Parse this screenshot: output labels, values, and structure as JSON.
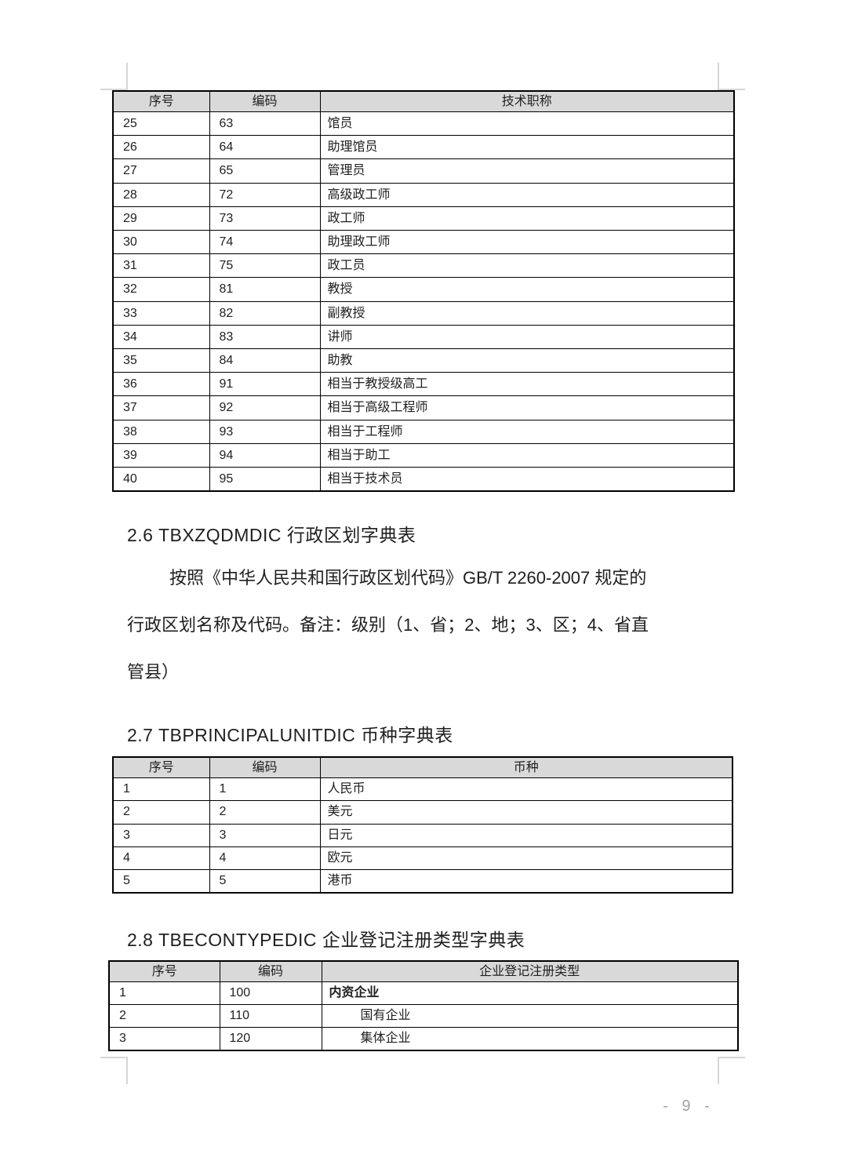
{
  "document": {
    "page_number_label": "- 9 -"
  },
  "colors": {
    "table_header_bg": "#d9d9d9",
    "table_border": "#000000",
    "body_text": "#1f1f1f",
    "page_number": "#a3a3a3",
    "crop_mark": "#d6d6d6"
  },
  "sections": {
    "tech_titles": {
      "table": {
        "headers": [
          "序号",
          "编码",
          "技术职称"
        ],
        "rows": [
          [
            "25",
            "63",
            "馆员"
          ],
          [
            "26",
            "64",
            "助理馆员"
          ],
          [
            "27",
            "65",
            "管理员"
          ],
          [
            "28",
            "72",
            "高级政工师"
          ],
          [
            "29",
            "73",
            "政工师"
          ],
          [
            "30",
            "74",
            "助理政工师"
          ],
          [
            "31",
            "75",
            "政工员"
          ],
          [
            "32",
            "81",
            "教授"
          ],
          [
            "33",
            "82",
            "副教授"
          ],
          [
            "34",
            "83",
            "讲师"
          ],
          [
            "35",
            "84",
            "助教"
          ],
          [
            "36",
            "91",
            "相当于教授级高工"
          ],
          [
            "37",
            "92",
            "相当于高级工程师"
          ],
          [
            "38",
            "93",
            "相当于工程师"
          ],
          [
            "39",
            "94",
            "相当于助工"
          ],
          [
            "40",
            "95",
            "相当于技术员"
          ]
        ]
      }
    },
    "admin_division": {
      "heading": "2.6 TBXZQDMDIC 行政区划字典表",
      "paragraph_lines": [
        "按照《中华人民共和国行政区划代码》GB/T 2260-2007 规定的",
        "行政区划名称及代码。备注：级别（1、省；2、地；3、区；4、省直",
        "管县）"
      ]
    },
    "currency": {
      "heading": "2.7 TBPRINCIPALUNITDIC 币种字典表",
      "table": {
        "headers": [
          "序号",
          "编码",
          "币种"
        ],
        "rows": [
          [
            "1",
            "1",
            "人民币"
          ],
          [
            "2",
            "2",
            "美元"
          ],
          [
            "3",
            "3",
            "日元"
          ],
          [
            "4",
            "4",
            "欧元"
          ],
          [
            "5",
            "5",
            "港币"
          ]
        ]
      }
    },
    "econ_type": {
      "heading": "2.8 TBECONTYPEDIC 企业登记注册类型字典表",
      "table": {
        "headers": [
          "序号",
          "编码",
          "企业登记注册类型"
        ],
        "rows": [
          [
            "1",
            "100",
            {
              "text": "内资企业",
              "bold": true
            }
          ],
          [
            "2",
            "110",
            {
              "text": "国有企业",
              "indent": true
            }
          ],
          [
            "3",
            "120",
            {
              "text": "集体企业",
              "indent": true
            }
          ]
        ]
      }
    }
  }
}
